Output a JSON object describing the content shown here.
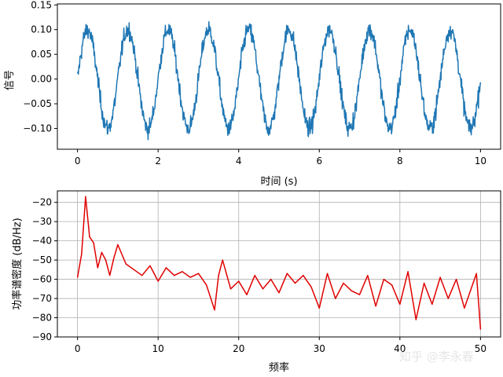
{
  "watermark": "知乎 @李永春",
  "chart_data": [
    {
      "type": "line",
      "xlabel": "时间 (s)",
      "ylabel": "信号",
      "xlim": [
        -0.5,
        10.5
      ],
      "ylim": [
        -0.142,
        0.152
      ],
      "xticks": [
        0,
        2,
        4,
        6,
        8,
        10
      ],
      "xtick_labels": [
        "0",
        "2",
        "4",
        "6",
        "8",
        "10"
      ],
      "yticks": [
        -0.1,
        -0.05,
        0.0,
        0.05,
        0.1,
        0.15
      ],
      "ytick_labels": [
        "−0.10",
        "−0.05",
        "0.00",
        "0.05",
        "0.10",
        "0.15"
      ],
      "grid": false,
      "color": "#1f77b4",
      "signal": {
        "x_start": 0,
        "x_end": 10,
        "samples": 1000,
        "amplitude": 0.1,
        "frequency_hz": 1,
        "noise": 0.02
      }
    },
    {
      "type": "line",
      "xlabel": "频率",
      "ylabel": "功率谱密度 (dB/Hz)",
      "xlim": [
        -2.5,
        52.5
      ],
      "ylim": [
        -90,
        -14
      ],
      "xticks": [
        0,
        10,
        20,
        30,
        40,
        50
      ],
      "xtick_labels": [
        "0",
        "10",
        "20",
        "30",
        "40",
        "50"
      ],
      "yticks": [
        -90,
        -80,
        -70,
        -60,
        -50,
        -40,
        -30,
        -20
      ],
      "ytick_labels": [
        "−90",
        "−80",
        "−70",
        "−60",
        "−50",
        "−40",
        "−30",
        "−20"
      ],
      "grid": true,
      "color": "#e00000",
      "x": [
        0,
        0.5,
        1.0,
        1.5,
        2.0,
        2.5,
        3.0,
        3.5,
        4.0,
        4.5,
        5.0,
        6.0,
        7.0,
        8.0,
        9.0,
        10.0,
        11.0,
        12.0,
        13.0,
        14.0,
        15.0,
        16.0,
        17.0,
        17.5,
        18.0,
        19.0,
        20.0,
        21.0,
        22.0,
        23.0,
        24.0,
        25.0,
        26.0,
        27.0,
        28.0,
        29.0,
        30.0,
        31.0,
        32.0,
        33.0,
        34.0,
        35.0,
        36.0,
        37.0,
        38.0,
        39.0,
        40.0,
        41.0,
        42.0,
        43.0,
        44.0,
        45.0,
        46.0,
        47.0,
        48.0,
        49.0,
        49.5,
        50.0
      ],
      "y": [
        -59,
        -47,
        -17,
        -38,
        -41,
        -54,
        -46,
        -50,
        -58,
        -49,
        -42,
        -52,
        -55,
        -58,
        -53,
        -61,
        -54,
        -58,
        -56,
        -59,
        -57,
        -63,
        -76,
        -58,
        -50,
        -65,
        -61,
        -68,
        -58,
        -65,
        -60,
        -67,
        -57,
        -62,
        -58,
        -64,
        -75,
        -57,
        -70,
        -62,
        -66,
        -68,
        -58,
        -74,
        -60,
        -63,
        -73,
        -56,
        -81,
        -62,
        -73,
        -59,
        -70,
        -60,
        -75,
        -63,
        -57,
        -86
      ]
    }
  ]
}
